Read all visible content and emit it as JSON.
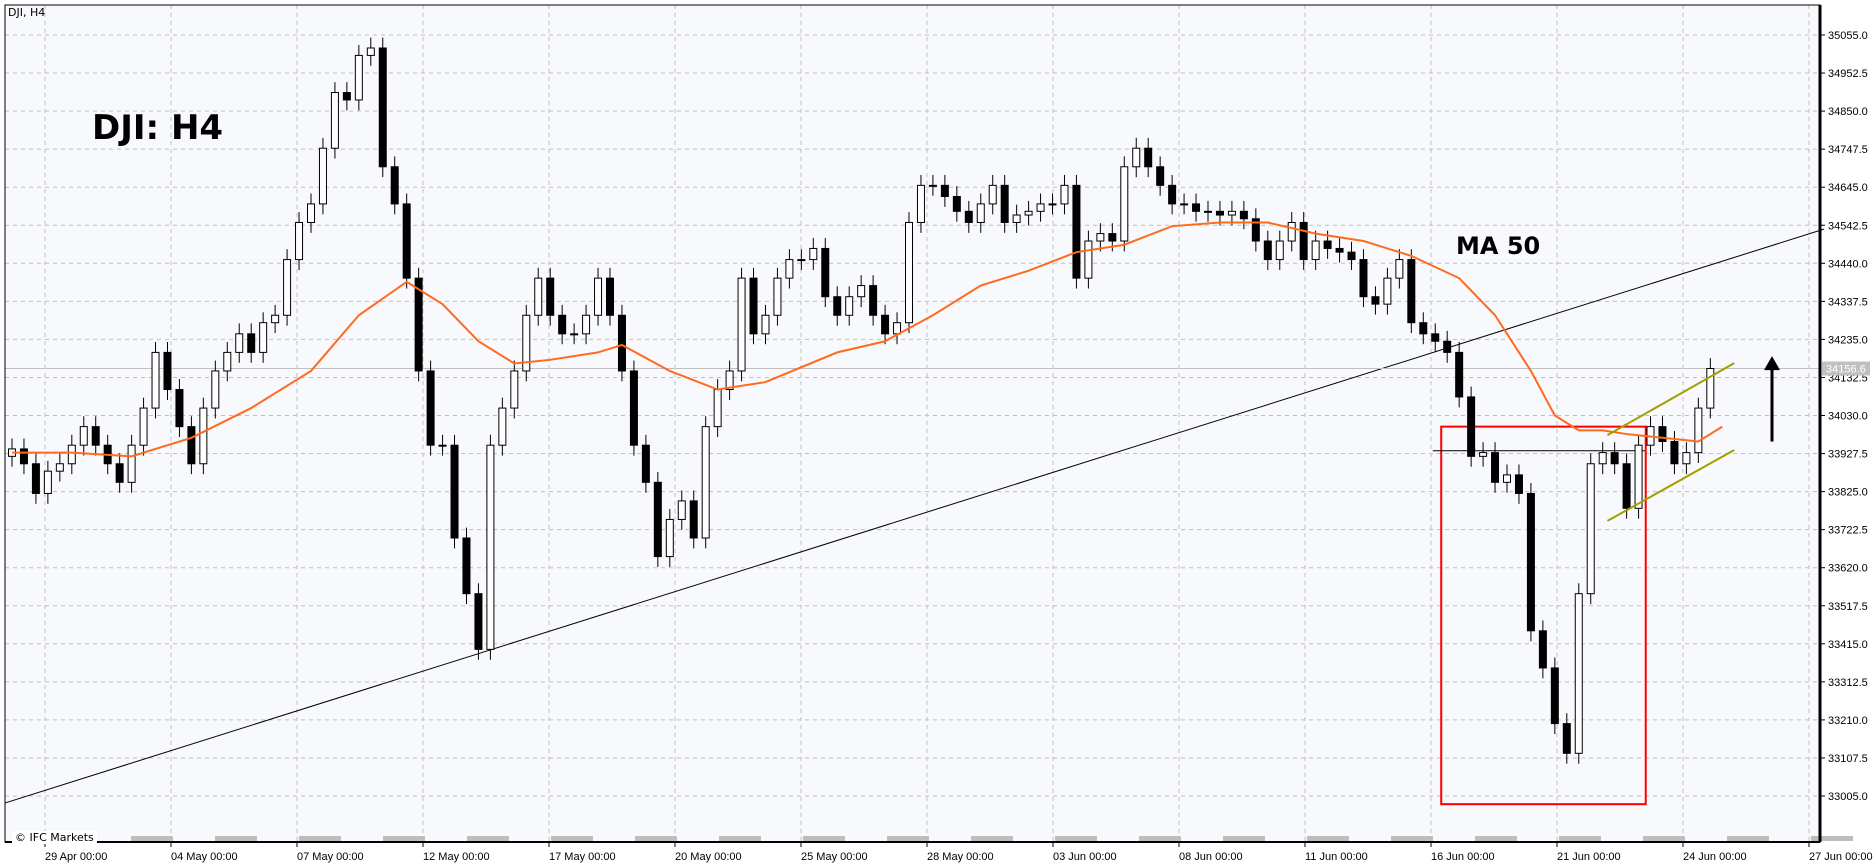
{
  "window_title": "DJI, H4",
  "chart_label": "DJI: H4",
  "ma_label": "MA 50",
  "copyright": "© IFC Markets",
  "colors": {
    "background": "#f8f9fd",
    "candle_up": "#ffffff",
    "candle_down": "#000000",
    "ma": "#ff6a1f",
    "box": "#ff0000",
    "channel": "#a0a000",
    "trendline": "#000000",
    "grid": "#c0c0c0"
  },
  "chart_data": {
    "type": "candlestick",
    "symbol": "DJI",
    "timeframe": "H4",
    "current_price": "34156.6",
    "ylim": [
      32900,
      35130
    ],
    "y_ticks": [
      "35055.0",
      "34952.5",
      "34850.0",
      "34747.5",
      "34645.0",
      "34542.5",
      "34440.0",
      "34337.5",
      "34235.0",
      "34132.5",
      "34030.0",
      "33927.5",
      "33825.0",
      "33722.5",
      "33620.0",
      "33517.5",
      "33415.0",
      "33312.5",
      "33210.0",
      "33107.5",
      "33005.0"
    ],
    "x_ticks": [
      "29 Apr 00:00",
      "04 May 00:00",
      "07 May 00:00",
      "12 May 00:00",
      "17 May 00:00",
      "20 May 00:00",
      "25 May 00:00",
      "28 May 00:00",
      "03 Jun 00:00",
      "08 Jun 00:00",
      "11 Jun 00:00",
      "16 Jun 00:00",
      "21 Jun 00:00",
      "24 Jun 00:00",
      "27 Jun 00:00"
    ],
    "closes": [
      33940,
      33900,
      33820,
      33880,
      33900,
      33950,
      34000,
      33950,
      33900,
      33850,
      33950,
      34050,
      34200,
      34100,
      34000,
      33900,
      34050,
      34150,
      34200,
      34250,
      34200,
      34280,
      34300,
      34450,
      34550,
      34600,
      34750,
      34900,
      34880,
      35000,
      35020,
      34700,
      34600,
      34400,
      34150,
      33950,
      33950,
      33700,
      33550,
      33400,
      33950,
      34050,
      34150,
      34300,
      34400,
      34300,
      34250,
      34250,
      34300,
      34400,
      34300,
      34150,
      33950,
      33850,
      33650,
      33750,
      33800,
      33700,
      34000,
      34100,
      34150,
      34400,
      34250,
      34300,
      34400,
      34450,
      34450,
      34480,
      34350,
      34300,
      34350,
      34380,
      34300,
      34250,
      34280,
      34550,
      34650,
      34650,
      34620,
      34580,
      34550,
      34600,
      34650,
      34550,
      34570,
      34580,
      34600,
      34600,
      34650,
      34400,
      34500,
      34520,
      34500,
      34700,
      34750,
      34700,
      34650,
      34600,
      34600,
      34580,
      34580,
      34570,
      34580,
      34560,
      34500,
      34450,
      34500,
      34550,
      34450,
      34500,
      34480,
      34470,
      34450,
      34350,
      34330,
      34400,
      34450,
      34280,
      34250,
      34230,
      34200,
      34080,
      33920,
      33930,
      33850,
      33870,
      33820,
      33450,
      33350,
      33200,
      33120,
      33550,
      33900,
      33930,
      33900,
      33780,
      33950,
      34000,
      33960,
      33900,
      33930,
      34050,
      34156.6
    ],
    "ma50": [
      [
        0,
        33930
      ],
      [
        5,
        33930
      ],
      [
        10,
        33920
      ],
      [
        15,
        33970
      ],
      [
        20,
        34050
      ],
      [
        25,
        34150
      ],
      [
        29,
        34300
      ],
      [
        33,
        34390
      ],
      [
        36,
        34330
      ],
      [
        39,
        34230
      ],
      [
        42,
        34170
      ],
      [
        45,
        34180
      ],
      [
        49,
        34200
      ],
      [
        51,
        34220
      ],
      [
        55,
        34150
      ],
      [
        59,
        34100
      ],
      [
        63,
        34120
      ],
      [
        69,
        34200
      ],
      [
        73,
        34230
      ],
      [
        77,
        34300
      ],
      [
        81,
        34380
      ],
      [
        85,
        34420
      ],
      [
        89,
        34470
      ],
      [
        93,
        34490
      ],
      [
        97,
        34540
      ],
      [
        101,
        34550
      ],
      [
        105,
        34550
      ],
      [
        109,
        34520
      ],
      [
        113,
        34500
      ],
      [
        117,
        34460
      ],
      [
        121,
        34400
      ],
      [
        124,
        34300
      ],
      [
        127,
        34150
      ],
      [
        129,
        34030
      ],
      [
        131,
        33990
      ],
      [
        133,
        33990
      ],
      [
        135,
        33980
      ],
      [
        138,
        33970
      ],
      [
        141,
        33960
      ],
      [
        143,
        34000
      ]
    ],
    "trendline": [
      [
        -0.6,
        32986
      ],
      [
        151.5,
        34532
      ]
    ],
    "support_level": [
      [
        118.8,
        33935
      ],
      [
        136.5,
        33935
      ]
    ],
    "box": {
      "from": 119.5,
      "to": 136.6,
      "top": 34000,
      "bottom": 32983
    },
    "channel_upper": [
      [
        133.4,
        33977
      ],
      [
        144,
        34171
      ]
    ],
    "channel_lower": [
      [
        133.4,
        33746
      ],
      [
        144,
        33937
      ]
    ],
    "arrow": {
      "direction": "up",
      "from": 33960,
      "to": 34190
    }
  }
}
